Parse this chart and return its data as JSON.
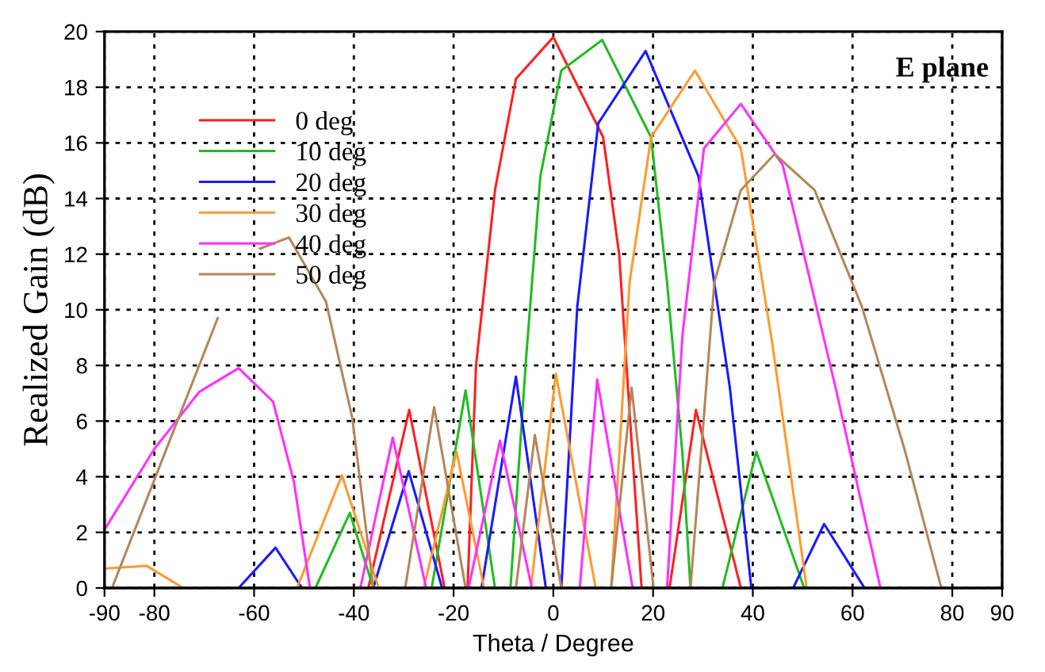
{
  "chart_data": {
    "type": "line",
    "xlabel": "Theta / Degree",
    "ylabel": "Realized Gain (dB)",
    "annotations": [
      "E plane"
    ],
    "xlim": [
      -90,
      90
    ],
    "xticks": [
      -90,
      -80,
      -60,
      -40,
      -20,
      0,
      20,
      40,
      60,
      80,
      90
    ],
    "ylim": [
      0,
      20
    ],
    "yticks": [
      0,
      2,
      4,
      6,
      8,
      10,
      12,
      14,
      16,
      18,
      20
    ],
    "grid": true,
    "legend": "top left",
    "marker": "none",
    "line_style": "solid",
    "series": [
      {
        "name": "0 deg",
        "color": "#ff2020",
        "x": [
          -37.1,
          -28.9,
          -21.8,
          -20,
          -17.2,
          -15.5,
          -11.7,
          -7.5,
          0,
          10,
          13.2,
          15.3,
          17.7,
          20,
          23.3,
          28.6,
          37.6
        ],
        "values": [
          0,
          6.4,
          0,
          null,
          0,
          8,
          14.3,
          18.3,
          19.8,
          16.2,
          12,
          6.3,
          0,
          null,
          0,
          6.4,
          0
        ]
      },
      {
        "name": "10 deg",
        "color": "#22bb22",
        "x": [
          -47.7,
          -40.8,
          -36.1,
          -30,
          -24.4,
          -17.6,
          -11.7,
          -10,
          -8.6,
          -5.4,
          -2.6,
          1.6,
          9.8,
          19.6,
          22.8,
          25.9,
          27.5,
          30,
          33.9,
          40.7,
          50.3
        ],
        "values": [
          0,
          2.7,
          0,
          null,
          0,
          7.1,
          0,
          null,
          0,
          8.4,
          14.8,
          18.6,
          19.7,
          16.2,
          11,
          4.8,
          0,
          null,
          0,
          4.9,
          0
        ]
      },
      {
        "name": "20 deg",
        "color": "#1a1aff",
        "x": [
          -63.1,
          -55.7,
          -50.4,
          -45,
          -36.1,
          -29,
          -22.3,
          -18,
          -14.4,
          -7.5,
          -1.5,
          0,
          1.6,
          4.8,
          9,
          18.5,
          29.1,
          35.4,
          39.7,
          45,
          48.1,
          54.3,
          62.4
        ],
        "values": [
          0,
          1.45,
          0,
          null,
          0,
          4.2,
          0,
          null,
          0,
          7.6,
          0,
          null,
          0,
          10.1,
          16.7,
          19.3,
          14.8,
          7.2,
          0,
          null,
          0,
          2.3,
          0
        ]
      },
      {
        "name": "30 deg",
        "color": "#ff9a30",
        "x": [
          -90,
          -81.6,
          -74.2,
          -60,
          -51.4,
          -42.4,
          -35,
          -30,
          -26,
          -19.4,
          -13.9,
          -10,
          -4.5,
          0.5,
          8.5,
          10,
          11.6,
          15.3,
          19.6,
          28.4,
          37.6,
          43.9,
          50.8
        ],
        "values": [
          0.7,
          0.8,
          0,
          null,
          0,
          4.05,
          0,
          null,
          0,
          4.9,
          0,
          null,
          0,
          7.7,
          0,
          null,
          0,
          11,
          16.2,
          18.6,
          15.8,
          8.8,
          0
        ]
      },
      {
        "name": "40 deg",
        "color": "#ff30ff",
        "x": [
          -90,
          -80,
          -71,
          -63.1,
          -56.2,
          -52,
          -48.8,
          -45,
          -38.7,
          -32.2,
          -25.5,
          -20,
          -17,
          -10.7,
          -4.3,
          0,
          5.3,
          8.8,
          15.9,
          20,
          22.8,
          25.9,
          30.2,
          37.6,
          46,
          56.6,
          65.6
        ],
        "values": [
          2.1,
          5,
          7.05,
          7.9,
          6.7,
          3.8,
          0,
          null,
          0,
          5.4,
          0,
          null,
          0,
          5.3,
          0,
          null,
          0,
          7.5,
          0,
          null,
          0,
          9.1,
          15.8,
          17.4,
          15.2,
          7.2,
          0
        ]
      },
      {
        "name": "50 deg",
        "color": "#b5865a",
        "x": [
          -88.5,
          -67.3,
          -63,
          -58.8,
          -53,
          -45.6,
          -40.3,
          -36.1,
          -33,
          -29.7,
          -23.9,
          -17.6,
          -10,
          -7.5,
          -3.7,
          1.6,
          5,
          11.6,
          15.7,
          20.1,
          24,
          27.5,
          32.3,
          37.6,
          44.4,
          52.4,
          61.9,
          70.4,
          77.8
        ],
        "values": [
          0,
          9.7,
          null,
          12.2,
          12.6,
          10.3,
          6.1,
          0,
          null,
          0,
          6.5,
          0,
          null,
          0,
          5.5,
          0,
          null,
          0,
          7.2,
          0,
          null,
          0,
          11,
          14.3,
          15.6,
          14.3,
          10.1,
          5,
          0
        ]
      }
    ]
  }
}
